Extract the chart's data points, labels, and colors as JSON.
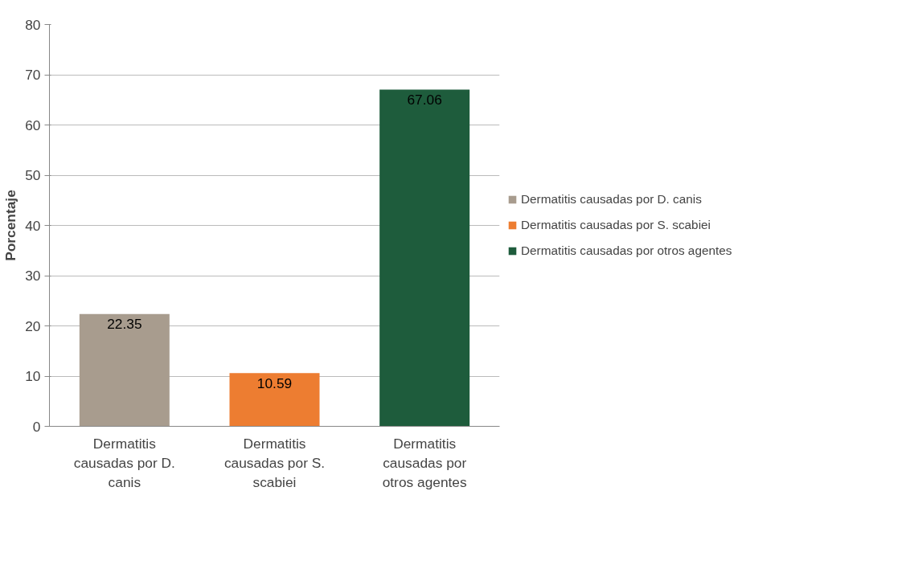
{
  "chart_data": {
    "type": "bar",
    "ylabel": "Porcentaje",
    "categories": [
      "Dermatitis causadas por D. canis",
      "Dermatitis causadas por S. scabiei",
      "Dermatitis causadas por otros agentes"
    ],
    "series": [
      {
        "name": "Dermatitis causadas por D. canis",
        "color": "#a89c8e",
        "values": [
          22.35,
          null,
          null
        ]
      },
      {
        "name": "Dermatitis causadas por S. scabiei",
        "color": "#ed7d31",
        "values": [
          null,
          10.59,
          null
        ]
      },
      {
        "name": "Dermatitis causadas por otros agentes",
        "color": "#1e5c3c",
        "values": [
          null,
          null,
          67.06
        ]
      }
    ],
    "ylim": [
      0,
      80
    ],
    "yticks": [
      0,
      10,
      20,
      30,
      40,
      50,
      60,
      70,
      80
    ],
    "grid": "y",
    "legend": "right",
    "data_labels": true
  }
}
